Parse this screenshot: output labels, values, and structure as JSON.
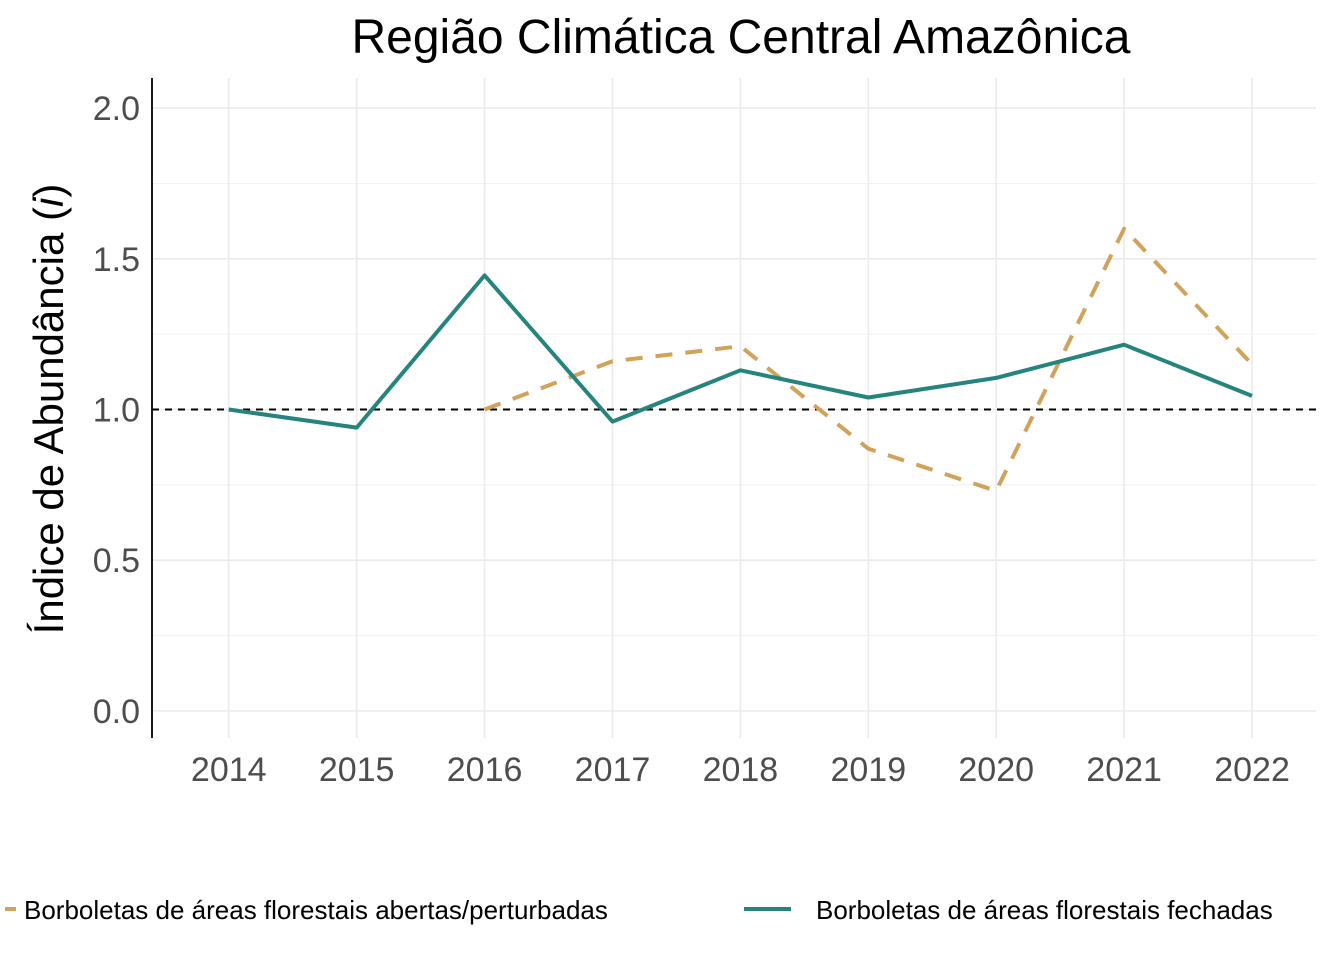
{
  "chart_data": {
    "type": "line",
    "title": "Região Climática Central Amazônica",
    "ylabel": "Índice de Abundância (i)",
    "ylabel_parts": {
      "prefix": "Índice de Abundância (",
      "italic": "i",
      "suffix": ")"
    },
    "xlabel": "",
    "x": [
      2014,
      2015,
      2016,
      2017,
      2018,
      2019,
      2020,
      2021,
      2022
    ],
    "xlim": [
      2013.4,
      2022.5
    ],
    "ylim": [
      -0.09,
      2.1
    ],
    "yticks": [
      0.0,
      0.5,
      1.0,
      1.5,
      2.0
    ],
    "ytick_labels": [
      "0.0",
      "0.5",
      "1.0",
      "1.5",
      "2.0"
    ],
    "xtick_labels": [
      "2014",
      "2015",
      "2016",
      "2017",
      "2018",
      "2019",
      "2020",
      "2021",
      "2022"
    ],
    "reference_line": {
      "y": 1.0,
      "style": "dashed",
      "color": "#000000"
    },
    "grid": true,
    "legend_position": "bottom",
    "series": [
      {
        "name": "Borboletas de áreas florestais abertas/perturbadas",
        "color": "#d1a259",
        "style": "dashed",
        "values": [
          null,
          null,
          1.0,
          1.16,
          1.21,
          0.87,
          0.73,
          1.6,
          1.15
        ]
      },
      {
        "name": "Borboletas de áreas florestais fechadas",
        "color": "#25857d",
        "style": "solid",
        "values": [
          1.0,
          0.94,
          1.445,
          0.96,
          1.13,
          1.04,
          1.105,
          1.215,
          1.045
        ]
      }
    ]
  }
}
